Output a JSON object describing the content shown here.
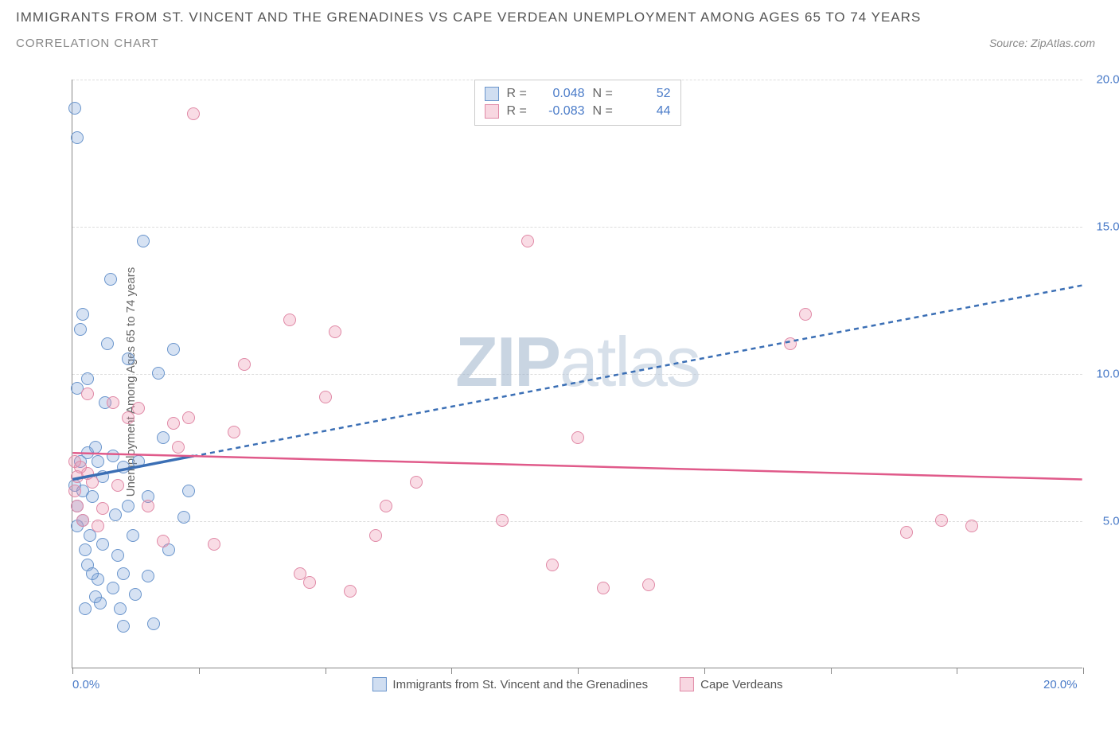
{
  "title": "IMMIGRANTS FROM ST. VINCENT AND THE GRENADINES VS CAPE VERDEAN UNEMPLOYMENT AMONG AGES 65 TO 74 YEARS",
  "subtitle": "CORRELATION CHART",
  "source": "Source: ZipAtlas.com",
  "watermark_bold": "ZIP",
  "watermark_rest": "atlas",
  "chart": {
    "type": "scatter",
    "background_color": "#ffffff",
    "grid_color": "#dddddd",
    "axis_color": "#888888",
    "xlim": [
      0,
      20
    ],
    "ylim": [
      0,
      20
    ],
    "x_ticks": [
      0,
      2.5,
      5,
      7.5,
      10,
      12.5,
      15,
      17.5,
      20
    ],
    "x_tick_labels": {
      "0": "0.0%",
      "20": "20.0%"
    },
    "y_ticks": [
      5,
      10,
      15,
      20
    ],
    "y_tick_labels": {
      "5": "5.0%",
      "10": "10.0%",
      "15": "15.0%",
      "20": "20.0%"
    },
    "y_axis_label": "Unemployment Among Ages 65 to 74 years",
    "y_tick_color": "#4a7bc8",
    "x_tick_color": "#4a7bc8",
    "marker_radius": 8,
    "marker_stroke_width": 1.5,
    "label_fontsize": 15,
    "tick_fontsize": 15
  },
  "series": [
    {
      "name": "Immigrants from St. Vincent and the Grenadines",
      "fill_color": "rgba(120,160,215,0.30)",
      "stroke_color": "#6a95cc",
      "line_color": "#3b6fb5",
      "line_dash": "6,5",
      "solid_segment": {
        "x1": 0,
        "y1": 6.4,
        "x2": 2.4,
        "y2": 7.2
      },
      "trend": {
        "x1": 0,
        "y1": 6.4,
        "x2": 20,
        "y2": 13.0
      },
      "R": "0.048",
      "N": "52",
      "points": [
        [
          0.05,
          19.0
        ],
        [
          0.1,
          18.0
        ],
        [
          0.05,
          6.2
        ],
        [
          0.1,
          5.5
        ],
        [
          0.1,
          4.8
        ],
        [
          0.15,
          7.0
        ],
        [
          0.1,
          9.5
        ],
        [
          0.15,
          11.5
        ],
        [
          0.2,
          12.0
        ],
        [
          0.3,
          9.8
        ],
        [
          0.2,
          6.0
        ],
        [
          0.2,
          5.0
        ],
        [
          0.25,
          4.0
        ],
        [
          0.3,
          3.5
        ],
        [
          0.35,
          4.5
        ],
        [
          0.4,
          5.8
        ],
        [
          0.45,
          7.5
        ],
        [
          0.5,
          7.0
        ],
        [
          0.5,
          3.0
        ],
        [
          0.55,
          2.2
        ],
        [
          0.6,
          4.2
        ],
        [
          0.6,
          6.5
        ],
        [
          0.65,
          9.0
        ],
        [
          0.7,
          11.0
        ],
        [
          0.75,
          13.2
        ],
        [
          0.8,
          7.2
        ],
        [
          0.85,
          5.2
        ],
        [
          0.9,
          3.8
        ],
        [
          0.95,
          2.0
        ],
        [
          1.0,
          3.2
        ],
        [
          1.0,
          6.8
        ],
        [
          1.1,
          10.5
        ],
        [
          1.1,
          5.5
        ],
        [
          1.2,
          4.5
        ],
        [
          1.25,
          2.5
        ],
        [
          1.3,
          7.0
        ],
        [
          1.4,
          14.5
        ],
        [
          1.5,
          5.8
        ],
        [
          1.6,
          1.5
        ],
        [
          1.7,
          10.0
        ],
        [
          1.8,
          7.8
        ],
        [
          1.9,
          4.0
        ],
        [
          2.0,
          10.8
        ],
        [
          2.2,
          5.1
        ],
        [
          2.3,
          6.0
        ],
        [
          0.3,
          7.3
        ],
        [
          0.4,
          3.2
        ],
        [
          0.45,
          2.4
        ],
        [
          1.5,
          3.1
        ],
        [
          0.8,
          2.7
        ],
        [
          0.25,
          2.0
        ],
        [
          1.0,
          1.4
        ]
      ]
    },
    {
      "name": "Cape Verdeans",
      "fill_color": "rgba(235,140,170,0.30)",
      "stroke_color": "#e089a6",
      "line_color": "#e05a8a",
      "line_dash": "none",
      "trend": {
        "x1": 0,
        "y1": 7.3,
        "x2": 20,
        "y2": 6.4
      },
      "R": "-0.083",
      "N": "44",
      "points": [
        [
          0.05,
          7.0
        ],
        [
          0.05,
          6.0
        ],
        [
          0.1,
          6.5
        ],
        [
          0.1,
          5.5
        ],
        [
          0.15,
          6.8
        ],
        [
          0.2,
          5.0
        ],
        [
          0.3,
          9.3
        ],
        [
          0.4,
          6.3
        ],
        [
          0.6,
          5.4
        ],
        [
          0.9,
          6.2
        ],
        [
          1.1,
          8.5
        ],
        [
          1.3,
          8.8
        ],
        [
          1.5,
          5.5
        ],
        [
          1.8,
          4.3
        ],
        [
          2.0,
          8.3
        ],
        [
          2.1,
          7.5
        ],
        [
          2.3,
          8.5
        ],
        [
          2.4,
          18.8
        ],
        [
          2.8,
          4.2
        ],
        [
          3.2,
          8.0
        ],
        [
          3.4,
          10.3
        ],
        [
          4.3,
          11.8
        ],
        [
          4.5,
          3.2
        ],
        [
          4.7,
          2.9
        ],
        [
          5.0,
          9.2
        ],
        [
          5.2,
          11.4
        ],
        [
          5.5,
          2.6
        ],
        [
          6.0,
          4.5
        ],
        [
          6.2,
          5.5
        ],
        [
          6.8,
          6.3
        ],
        [
          8.5,
          5.0
        ],
        [
          9.0,
          14.5
        ],
        [
          9.5,
          3.5
        ],
        [
          10.0,
          7.8
        ],
        [
          10.5,
          2.7
        ],
        [
          11.4,
          2.8
        ],
        [
          14.2,
          11.0
        ],
        [
          14.5,
          12.0
        ],
        [
          16.5,
          4.6
        ],
        [
          17.2,
          5.0
        ],
        [
          17.8,
          4.8
        ],
        [
          0.3,
          6.6
        ],
        [
          0.5,
          4.8
        ],
        [
          0.8,
          9.0
        ]
      ]
    }
  ],
  "stat_legend": {
    "rows": [
      {
        "swatch_fill": "rgba(120,160,215,0.35)",
        "swatch_stroke": "#6a95cc",
        "R": "0.048",
        "N": "52"
      },
      {
        "swatch_fill": "rgba(235,140,170,0.35)",
        "swatch_stroke": "#e089a6",
        "R": "-0.083",
        "N": "44"
      }
    ],
    "labels": {
      "R": "R =",
      "N": "N ="
    }
  },
  "bottom_legend": [
    {
      "swatch_fill": "rgba(120,160,215,0.35)",
      "swatch_stroke": "#6a95cc",
      "label": "Immigrants from St. Vincent and the Grenadines"
    },
    {
      "swatch_fill": "rgba(235,140,170,0.35)",
      "swatch_stroke": "#e089a6",
      "label": "Cape Verdeans"
    }
  ]
}
